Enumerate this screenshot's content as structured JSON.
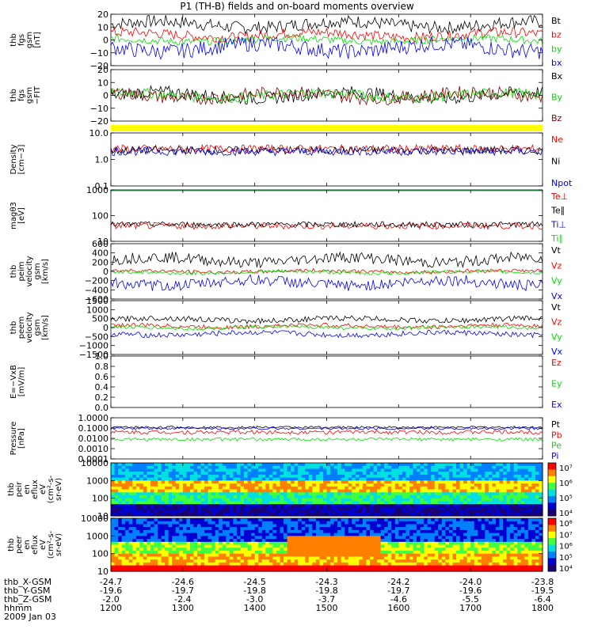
{
  "title": "P1 (TH-B) fields and on-board moments overview",
  "date": "2009 Jan 03",
  "colors": {
    "black": "#000000",
    "red": "#ff0000",
    "green": "#00e000",
    "blue": "#0000ff",
    "bar": "#ffff00"
  },
  "chart_data": {
    "type": "line",
    "x_ticks": [
      "1200",
      "1300",
      "1400",
      "1500",
      "1600",
      "1700",
      "1800"
    ],
    "x_rows": [
      {
        "name": "thb_X-GSM",
        "values": [
          "-24.7",
          "-24.6",
          "-24.5",
          "-24.3",
          "-24.2",
          "-24.0",
          "-23.8"
        ]
      },
      {
        "name": "thb_Y-GSM",
        "values": [
          "-19.6",
          "-19.7",
          "-19.8",
          "-19.8",
          "-19.7",
          "-19.6",
          "-19.5"
        ]
      },
      {
        "name": "thb_Z-GSM",
        "values": [
          "-2.0",
          "-2.4",
          "-3.0",
          "-3.7",
          "-4.6",
          "-5.5",
          "-6.4"
        ]
      },
      {
        "name": "hhmm",
        "values": [
          "1200",
          "1300",
          "1400",
          "1500",
          "1600",
          "1700",
          "1800"
        ]
      }
    ],
    "panels": [
      {
        "kind": "line",
        "ylabel": [
          "thb",
          "fgs",
          "gsm",
          "[nT]"
        ],
        "yticks": [
          "20",
          "10",
          "0",
          "−10",
          "−20"
        ],
        "ylim": [
          -20,
          20
        ],
        "scale": "linear",
        "series": [
          {
            "name": "Bt",
            "color": "#000000",
            "base": 12,
            "amp": 5
          },
          {
            "name": "bz",
            "color": "#ff0000",
            "base": 4,
            "amp": 4
          },
          {
            "name": "by",
            "color": "#00e000",
            "base": 0,
            "amp": 3
          },
          {
            "name": "bx",
            "color": "#0000ff",
            "base": -6,
            "amp": 6
          }
        ]
      },
      {
        "kind": "line",
        "ylabel": [
          "thb",
          "fgs",
          "gsm",
          "−FIT"
        ],
        "yticks": [
          "20",
          "10",
          "0",
          "−10",
          "−20"
        ],
        "ylim": [
          -20,
          20
        ],
        "scale": "linear",
        "series": [
          {
            "name": "Bx",
            "color": "#000000",
            "base": 0,
            "amp": 5
          },
          {
            "name": "By",
            "color": "#00e000",
            "base": 0,
            "amp": 4
          },
          {
            "name": "Bz",
            "color": "#8b0000",
            "base": 0,
            "amp": 5
          }
        ]
      },
      {
        "kind": "line",
        "ylabel": [
          "Density",
          "[cm−3]"
        ],
        "yticks": [
          "10.0",
          "1.0",
          "0.1"
        ],
        "ylim": [
          0.1,
          10
        ],
        "scale": "log",
        "series": [
          {
            "name": "Ne",
            "color": "#ff0000",
            "base": 2.5,
            "amp": 1.5
          },
          {
            "name": "Ni",
            "color": "#000000",
            "base": 2.2,
            "amp": 1.3
          },
          {
            "name": "Npot",
            "color": "#0000ff",
            "base": 2.0,
            "amp": 1.2
          }
        ]
      },
      {
        "kind": "line",
        "ylabel": [
          "magθ3",
          "[eV]"
        ],
        "yticks": [
          "1000",
          "100",
          "10"
        ],
        "ylim": [
          10,
          1000
        ],
        "scale": "log",
        "series": [
          {
            "name": "Te⊥",
            "color": "#ff0000",
            "base": 40,
            "amp": 20
          },
          {
            "name": "Te∥",
            "color": "#000000",
            "base": 45,
            "amp": 20
          },
          {
            "name": "Ti⊥",
            "color": "#0000ff",
            "base": 1500,
            "amp": 300
          },
          {
            "name": "Ti∥",
            "color": "#00e000",
            "base": 1200,
            "amp": 300
          }
        ]
      },
      {
        "kind": "line",
        "ylabel": [
          "thb",
          "peim",
          "velocity",
          "gsm",
          "[km/s]"
        ],
        "yticks": [
          "600",
          "400",
          "200",
          "0",
          "−200",
          "−400",
          "−600"
        ],
        "ylim": [
          -600,
          600
        ],
        "scale": "linear",
        "series": [
          {
            "name": "Vt",
            "color": "#000000",
            "base": 250,
            "amp": 120
          },
          {
            "name": "Vz",
            "color": "#ff0000",
            "base": 0,
            "amp": 40
          },
          {
            "name": "Vy",
            "color": "#00e000",
            "base": -20,
            "amp": 40
          },
          {
            "name": "Vx",
            "color": "#0000ff",
            "base": -250,
            "amp": 120
          }
        ]
      },
      {
        "kind": "line",
        "ylabel": [
          "thb",
          "peem",
          "velocity",
          "gsm",
          "[km/s]"
        ],
        "yticks": [
          "1500",
          "1000",
          "500",
          "0",
          "−500",
          "−1000",
          "−1500"
        ],
        "ylim": [
          -1500,
          1500
        ],
        "scale": "linear",
        "series": [
          {
            "name": "Vt",
            "color": "#000000",
            "base": 450,
            "amp": 150
          },
          {
            "name": "Vz",
            "color": "#ff0000",
            "base": 80,
            "amp": 120
          },
          {
            "name": "Vy",
            "color": "#00e000",
            "base": 0,
            "amp": 100
          },
          {
            "name": "Vx",
            "color": "#0000ff",
            "base": -350,
            "amp": 150
          }
        ]
      },
      {
        "kind": "empty",
        "ylabel": [
          "E=−VxB",
          "[mV/m]"
        ],
        "yticks": [
          "1.0",
          "0.8",
          "0.6",
          "0.4",
          "0.2",
          "0.0"
        ],
        "ylim": [
          0,
          1
        ],
        "scale": "linear",
        "series": [
          {
            "name": "Ez",
            "color": "#ff0000"
          },
          {
            "name": "Ey",
            "color": "#00e000"
          },
          {
            "name": "Ex",
            "color": "#0000ff"
          }
        ]
      },
      {
        "kind": "line",
        "ylabel": [
          "Pressure",
          "[nPa]"
        ],
        "yticks": [
          "1.0000",
          "0.1000",
          "0.0100",
          "0.0010",
          "0.0001"
        ],
        "ylim": [
          0.0001,
          1
        ],
        "scale": "log",
        "series": [
          {
            "name": "Pt",
            "color": "#000000",
            "base": 0.12,
            "amp": 0.05
          },
          {
            "name": "Pb",
            "color": "#ff0000",
            "base": 0.04,
            "amp": 0.03
          },
          {
            "name": "Pe",
            "color": "#00e000",
            "base": 0.008,
            "amp": 0.005
          },
          {
            "name": "Pi",
            "color": "#0000ff",
            "base": 0.09,
            "amp": 0.04
          }
        ]
      },
      {
        "kind": "spec",
        "ylabel": [
          "thb",
          "peir",
          "en",
          "eflux",
          "eV",
          "(cm²-s-",
          "sr-eV)"
        ],
        "yticks": [
          "10000",
          "1000",
          "100",
          "10"
        ],
        "ylim": [
          10,
          10000
        ],
        "scale": "log",
        "cbar": [
          "10⁷",
          "10⁶",
          "10⁵",
          "10⁴"
        ]
      },
      {
        "kind": "spec",
        "ylabel": [
          "thb",
          "peer",
          "en",
          "eflux",
          "eV",
          "(cm²-s-",
          "sr-eV)"
        ],
        "yticks": [
          "10000",
          "1000",
          "100",
          "10"
        ],
        "ylim": [
          10,
          10000
        ],
        "scale": "log",
        "cbar": [
          "10⁸",
          "10⁷",
          "10⁶",
          "10⁵",
          "10⁴"
        ]
      }
    ]
  }
}
